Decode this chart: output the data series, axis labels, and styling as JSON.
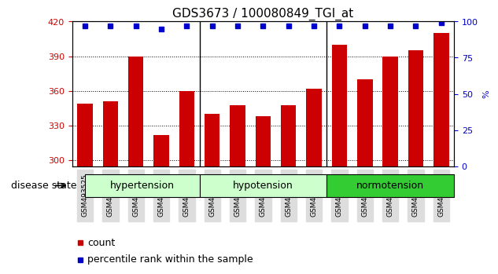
{
  "title": "GDS3673 / 100080849_TGI_at",
  "samples": [
    "GSM493525",
    "GSM493526",
    "GSM493527",
    "GSM493528",
    "GSM493529",
    "GSM493530",
    "GSM493531",
    "GSM493532",
    "GSM493533",
    "GSM493534",
    "GSM493535",
    "GSM493536",
    "GSM493537",
    "GSM493538",
    "GSM493539"
  ],
  "counts": [
    349,
    351,
    390,
    322,
    360,
    340,
    348,
    338,
    348,
    362,
    400,
    370,
    390,
    395,
    410
  ],
  "percentiles": [
    97,
    97,
    97,
    95,
    97,
    97,
    97,
    97,
    97,
    97,
    97,
    97,
    97,
    97,
    99
  ],
  "groups": [
    {
      "label": "hypertension",
      "start": 0,
      "end": 5,
      "color": "#ccffcc"
    },
    {
      "label": "hypotension",
      "start": 5,
      "end": 10,
      "color": "#ccffcc"
    },
    {
      "label": "normotension",
      "start": 10,
      "end": 15,
      "color": "#33cc33"
    }
  ],
  "group_dividers": [
    4.5,
    9.5
  ],
  "ylim_left": [
    295,
    420
  ],
  "ylim_right": [
    0,
    100
  ],
  "yticks_left": [
    300,
    330,
    360,
    390,
    420
  ],
  "yticks_right": [
    0,
    25,
    50,
    75,
    100
  ],
  "bar_color": "#cc0000",
  "dot_color": "#0000cc",
  "bar_width": 0.6,
  "bg_color": "#f5f5f5",
  "group_bg_light": "#ccffcc",
  "group_bg_dark": "#33cc33",
  "disease_state_label": "disease state",
  "legend_count_label": "count",
  "legend_percentile_label": "percentile rank within the sample",
  "grid_color": "#000000",
  "title_fontsize": 11,
  "tick_fontsize": 8,
  "label_fontsize": 9
}
